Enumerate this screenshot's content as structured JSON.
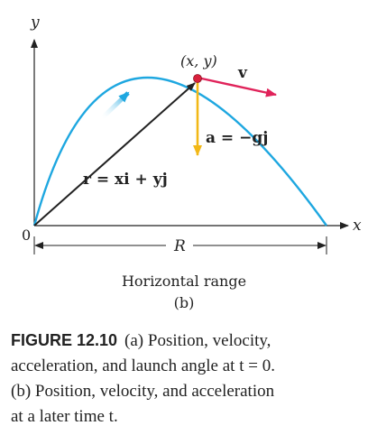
{
  "diagram": {
    "axis_y_label": "y",
    "axis_x_label": "x",
    "origin_label": "0",
    "point_label": "(x, y)",
    "velocity_label": "v",
    "accel_label": "a = −gj",
    "position_label": "r = xi + yj",
    "range_label": "R",
    "range_caption": "Horizontal range",
    "panel_label": "(b)",
    "colors": {
      "trajectory": "#1ea7e0",
      "velocity": "#e0235a",
      "acceleration": "#f2b817",
      "position": "#222222",
      "point": "#d9203c"
    }
  },
  "caption": {
    "figure_number": "FIGURE 12.10",
    "line1": "(a) Position, velocity,",
    "line2": "acceleration, and launch angle at t = 0.",
    "line3": "(b) Position, velocity, and acceleration",
    "line4": "at a later time t."
  }
}
